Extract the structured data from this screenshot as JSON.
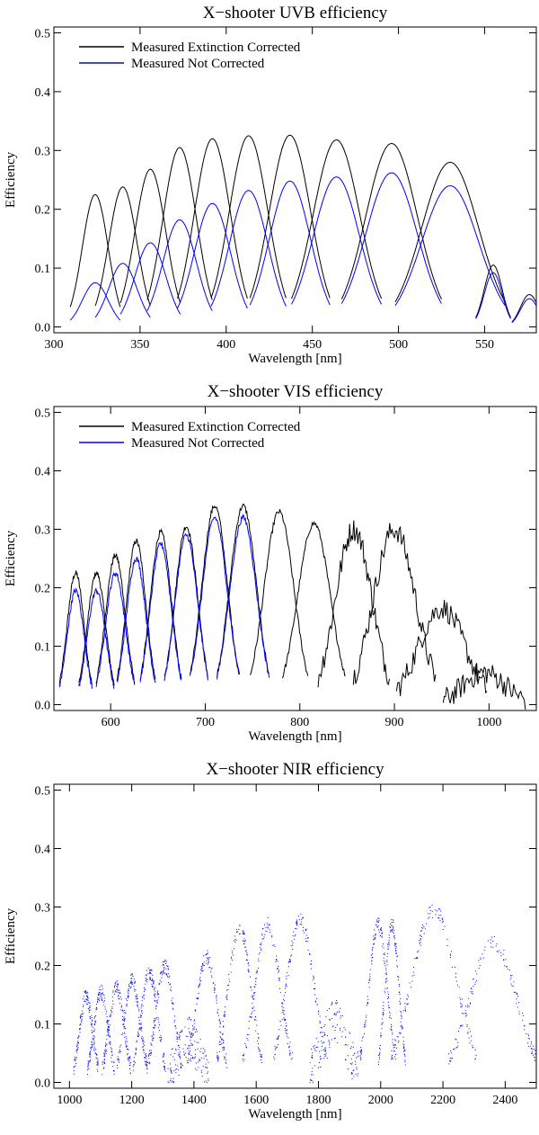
{
  "chart_data": [
    {
      "id": "uvb",
      "type": "line",
      "title": "X−shooter UVB efficiency",
      "xlabel": "Wavelength [nm]",
      "ylabel": "Efficiency",
      "xlim": [
        300,
        580
      ],
      "ylim": [
        -0.01,
        0.51
      ],
      "xticks": [
        300,
        350,
        400,
        450,
        500,
        550
      ],
      "yticks": [
        0.0,
        0.1,
        0.2,
        0.3,
        0.4,
        0.5
      ],
      "ytick_labels": [
        "0.0",
        "0.1",
        "0.2",
        "0.3",
        "0.4",
        "0.5"
      ],
      "legend": [
        {
          "label": "Measured Extinction Corrected",
          "color": "#000000"
        },
        {
          "label": "Measured Not Corrected",
          "color": "#0000ff"
        }
      ],
      "legend_position": "top-left",
      "series": [
        {
          "name": "Measured Extinction Corrected",
          "color": "#000000",
          "style": "line",
          "orders": [
            {
              "center": 324,
              "width": 10,
              "peak": 0.225
            },
            {
              "center": 340,
              "width": 11,
              "peak": 0.238
            },
            {
              "center": 356,
              "width": 12,
              "peak": 0.268
            },
            {
              "center": 373,
              "width": 13,
              "peak": 0.305
            },
            {
              "center": 392,
              "width": 14,
              "peak": 0.32
            },
            {
              "center": 413,
              "width": 15,
              "peak": 0.325
            },
            {
              "center": 437,
              "width": 16,
              "peak": 0.326
            },
            {
              "center": 464,
              "width": 18,
              "peak": 0.318
            },
            {
              "center": 496,
              "width": 20,
              "peak": 0.312
            },
            {
              "center": 530,
              "width": 22,
              "peak": 0.28
            },
            {
              "center": 555,
              "width": 7,
              "peak": 0.105
            },
            {
              "center": 576,
              "width": 7,
              "peak": 0.055
            }
          ]
        },
        {
          "name": "Measured Not Corrected",
          "color": "#0000ff",
          "style": "line",
          "orders": [
            {
              "center": 324,
              "width": 10,
              "peak": 0.075
            },
            {
              "center": 340,
              "width": 11,
              "peak": 0.108
            },
            {
              "center": 356,
              "width": 12,
              "peak": 0.143
            },
            {
              "center": 373,
              "width": 13,
              "peak": 0.182
            },
            {
              "center": 392,
              "width": 14,
              "peak": 0.21
            },
            {
              "center": 413,
              "width": 15,
              "peak": 0.232
            },
            {
              "center": 437,
              "width": 16,
              "peak": 0.248
            },
            {
              "center": 464,
              "width": 18,
              "peak": 0.255
            },
            {
              "center": 496,
              "width": 20,
              "peak": 0.262
            },
            {
              "center": 530,
              "width": 22,
              "peak": 0.24
            },
            {
              "center": 555,
              "width": 7,
              "peak": 0.092
            },
            {
              "center": 576,
              "width": 7,
              "peak": 0.048
            }
          ]
        }
      ]
    },
    {
      "id": "vis",
      "type": "line",
      "title": "X−shooter VIS efficiency",
      "xlabel": "Wavelength [nm]",
      "ylabel": "Efficiency",
      "xlim": [
        540,
        1050
      ],
      "ylim": [
        -0.01,
        0.51
      ],
      "xticks": [
        600,
        700,
        800,
        900,
        1000
      ],
      "yticks": [
        0.0,
        0.1,
        0.2,
        0.3,
        0.4,
        0.5
      ],
      "ytick_labels": [
        "0.0",
        "0.1",
        "0.2",
        "0.3",
        "0.4",
        "0.5"
      ],
      "legend": [
        {
          "label": "Measured Extinction Corrected",
          "color": "#000000"
        },
        {
          "label": "Measured Not Corrected",
          "color": "#0000ff"
        }
      ],
      "legend_position": "top-left",
      "series": [
        {
          "name": "Measured Extinction Corrected",
          "color": "#000000",
          "style": "line",
          "orders": [
            {
              "center": 563,
              "width": 12,
              "peak": 0.225
            },
            {
              "center": 585,
              "width": 13,
              "peak": 0.225
            },
            {
              "center": 605,
              "width": 14,
              "peak": 0.255
            },
            {
              "center": 627,
              "width": 14,
              "peak": 0.28
            },
            {
              "center": 653,
              "width": 15,
              "peak": 0.295
            },
            {
              "center": 680,
              "width": 16,
              "peak": 0.305
            },
            {
              "center": 710,
              "width": 18,
              "peak": 0.34
            },
            {
              "center": 740,
              "width": 19,
              "peak": 0.34
            },
            {
              "center": 778,
              "width": 21,
              "peak": 0.33
            },
            {
              "center": 815,
              "width": 23,
              "peak": 0.31
            },
            {
              "center": 857,
              "width": 26,
              "peak": 0.3
            },
            {
              "center": 900,
              "width": 30,
              "peak": 0.3
            },
            {
              "center": 950,
              "width": 33,
              "peak": 0.165
            },
            {
              "center": 995,
              "width": 30,
              "peak": 0.055
            }
          ]
        },
        {
          "name": "Measured Not Corrected",
          "color": "#0000ff",
          "style": "line",
          "orders": [
            {
              "center": 563,
              "width": 12,
              "peak": 0.195
            },
            {
              "center": 585,
              "width": 13,
              "peak": 0.195
            },
            {
              "center": 605,
              "width": 14,
              "peak": 0.225
            },
            {
              "center": 627,
              "width": 14,
              "peak": 0.25
            },
            {
              "center": 653,
              "width": 15,
              "peak": 0.275
            },
            {
              "center": 680,
              "width": 16,
              "peak": 0.29
            },
            {
              "center": 710,
              "width": 18,
              "peak": 0.32
            },
            {
              "center": 740,
              "width": 19,
              "peak": 0.32
            }
          ]
        }
      ]
    },
    {
      "id": "nir",
      "type": "scatter",
      "title": "X−shooter NIR efficiency",
      "xlabel": "Wavelength [nm]",
      "ylabel": "Efficiency",
      "xlim": [
        950,
        2500
      ],
      "ylim": [
        -0.01,
        0.51
      ],
      "xticks": [
        1000,
        1200,
        1400,
        1600,
        1800,
        2000,
        2200,
        2400
      ],
      "yticks": [
        0.0,
        0.1,
        0.2,
        0.3,
        0.4,
        0.5
      ],
      "ytick_labels": [
        "0.0",
        "0.1",
        "0.2",
        "0.3",
        "0.4",
        "0.5"
      ],
      "legend": [],
      "series": [
        {
          "name": "Measured Not Corrected",
          "color": "#0000ff",
          "style": "dots",
          "orders": [
            {
              "center": 1052,
              "width": 28,
              "peak": 0.148
            },
            {
              "center": 1100,
              "width": 30,
              "peak": 0.155
            },
            {
              "center": 1150,
              "width": 32,
              "peak": 0.162
            },
            {
              "center": 1200,
              "width": 34,
              "peak": 0.175
            },
            {
              "center": 1255,
              "width": 36,
              "peak": 0.188
            },
            {
              "center": 1305,
              "width": 38,
              "peak": 0.2
            },
            {
              "center": 1380,
              "width": 45,
              "peak": 0.075
            },
            {
              "center": 1440,
              "width": 45,
              "peak": 0.215
            },
            {
              "center": 1545,
              "width": 50,
              "peak": 0.265
            },
            {
              "center": 1635,
              "width": 55,
              "peak": 0.27
            },
            {
              "center": 1740,
              "width": 60,
              "peak": 0.278
            },
            {
              "center": 1850,
              "width": 55,
              "peak": 0.105
            },
            {
              "center": 1990,
              "width": 40,
              "peak": 0.27
            },
            {
              "center": 2035,
              "width": 30,
              "peak": 0.27
            },
            {
              "center": 2170,
              "width": 95,
              "peak": 0.295
            },
            {
              "center": 2360,
              "width": 100,
              "peak": 0.24
            }
          ]
        }
      ]
    }
  ]
}
